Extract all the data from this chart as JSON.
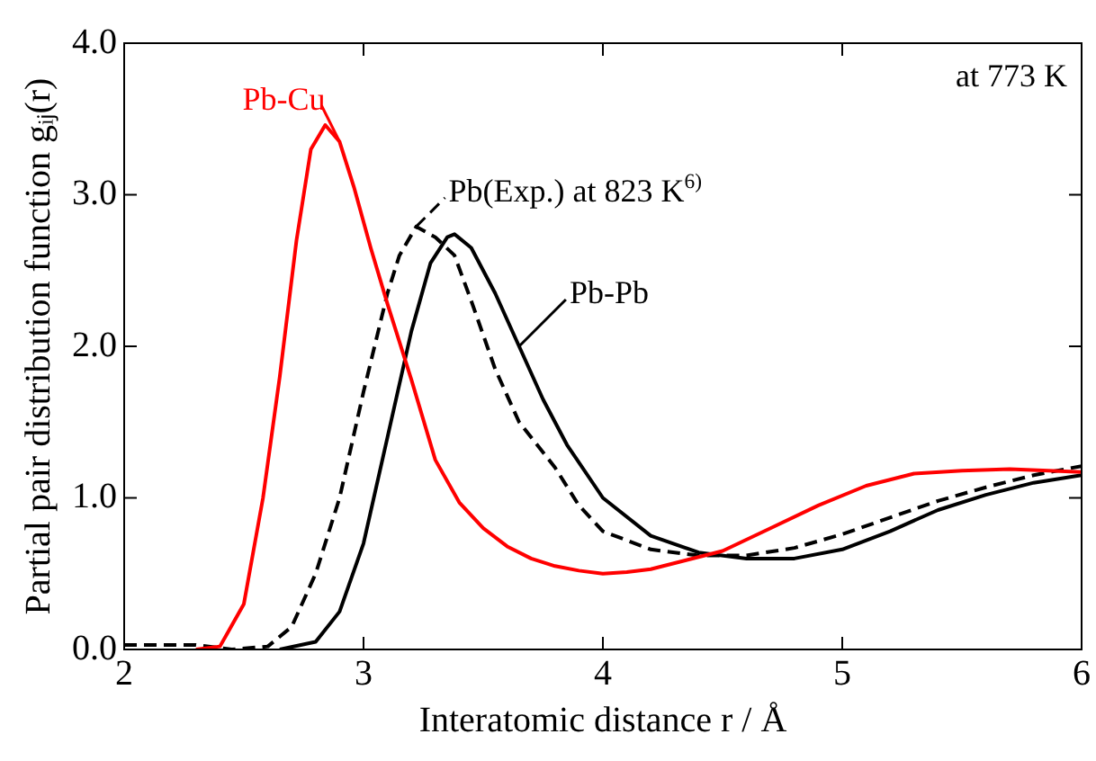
{
  "chart_data": {
    "type": "line",
    "xlabel": "Interatomic distance r / Å",
    "ylabel": "Partial pair distribution function gᵢⱼ(r)",
    "xlim": [
      2,
      6
    ],
    "ylim": [
      0,
      4
    ],
    "xticks": [
      2,
      3,
      4,
      5,
      6
    ],
    "yticks": [
      {
        "value": 0,
        "label": "0.0"
      },
      {
        "value": 1,
        "label": "1.0"
      },
      {
        "value": 2,
        "label": "2.0"
      },
      {
        "value": 3,
        "label": "3.0"
      },
      {
        "value": 4,
        "label": "4.0"
      }
    ],
    "grid": false,
    "legend": false,
    "marker": "none",
    "annotations": [
      "at 773 K"
    ],
    "series": [
      {
        "name": "Pb-Cu",
        "color": "#ff0000",
        "line_style": "solid",
        "x": [
          2.3,
          2.4,
          2.5,
          2.58,
          2.65,
          2.72,
          2.78,
          2.84,
          2.9,
          2.96,
          3.03,
          3.1,
          3.2,
          3.3,
          3.4,
          3.5,
          3.6,
          3.7,
          3.8,
          3.9,
          4.0,
          4.1,
          4.2,
          4.3,
          4.5,
          4.7,
          4.9,
          5.1,
          5.3,
          5.5,
          5.7,
          6.0
        ],
        "values": [
          0,
          0.02,
          0.3,
          1.0,
          1.8,
          2.7,
          3.3,
          3.46,
          3.35,
          3.05,
          2.65,
          2.28,
          1.78,
          1.25,
          0.97,
          0.8,
          0.68,
          0.6,
          0.55,
          0.52,
          0.5,
          0.51,
          0.53,
          0.57,
          0.65,
          0.8,
          0.95,
          1.08,
          1.16,
          1.18,
          1.19,
          1.17
        ]
      },
      {
        "name": "Pb(Exp.) at 823 K$^{6)}$",
        "color": "#000000",
        "line_style": "dashed",
        "x": [
          2.0,
          2.3,
          2.45,
          2.6,
          2.7,
          2.8,
          2.9,
          3.0,
          3.1,
          3.15,
          3.22,
          3.3,
          3.38,
          3.45,
          3.55,
          3.65,
          3.8,
          3.9,
          4.0,
          4.2,
          4.4,
          4.6,
          4.8,
          5.0,
          5.2,
          5.4,
          5.6,
          5.8,
          6.0
        ],
        "values": [
          0.03,
          0.03,
          0.0,
          0.02,
          0.15,
          0.5,
          1.0,
          1.7,
          2.35,
          2.6,
          2.79,
          2.72,
          2.6,
          2.3,
          1.85,
          1.5,
          1.2,
          0.95,
          0.78,
          0.66,
          0.62,
          0.62,
          0.67,
          0.76,
          0.87,
          0.98,
          1.07,
          1.15,
          1.21
        ]
      },
      {
        "name": "Pb-Pb",
        "color": "#000000",
        "line_style": "solid",
        "x": [
          2.65,
          2.8,
          2.9,
          3.0,
          3.1,
          3.2,
          3.28,
          3.35,
          3.38,
          3.45,
          3.55,
          3.65,
          3.75,
          3.85,
          4.0,
          4.2,
          4.4,
          4.6,
          4.8,
          5.0,
          5.2,
          5.4,
          5.6,
          5.8,
          6.0
        ],
        "values": [
          0,
          0.05,
          0.25,
          0.7,
          1.4,
          2.1,
          2.55,
          2.72,
          2.74,
          2.65,
          2.35,
          2.0,
          1.65,
          1.35,
          1.0,
          0.75,
          0.64,
          0.6,
          0.6,
          0.66,
          0.78,
          0.92,
          1.02,
          1.1,
          1.15
        ]
      }
    ]
  }
}
